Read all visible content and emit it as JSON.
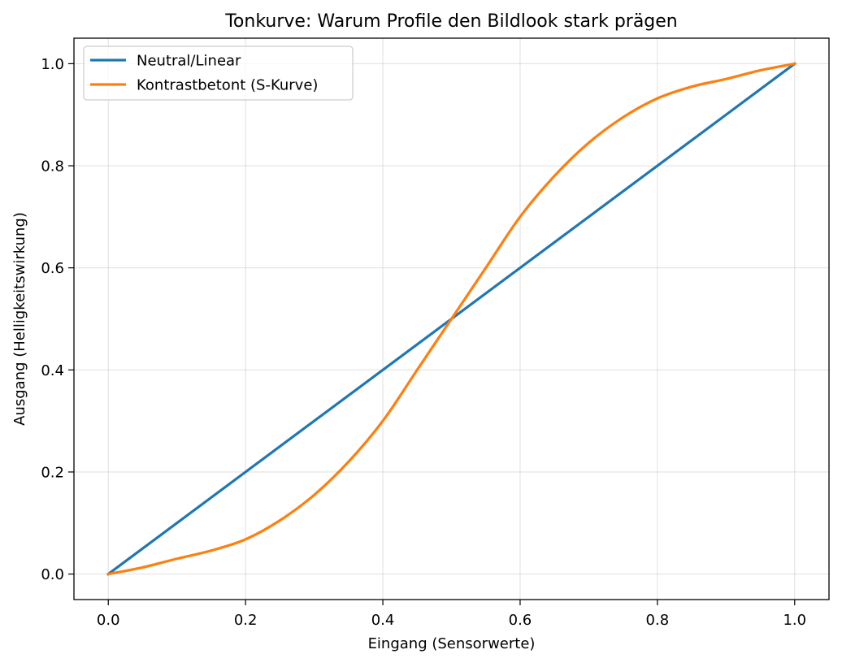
{
  "chart_data": {
    "type": "line",
    "title": "Tonkurve: Warum Profile den Bildlook stark prägen",
    "xlabel": "Eingang (Sensorwerte)",
    "ylabel": "Ausgang (Helligkeitswirkung)",
    "xlim": [
      -0.05,
      1.05
    ],
    "ylim": [
      -0.05,
      1.05
    ],
    "xticks": [
      0.0,
      0.2,
      0.4,
      0.6,
      0.8,
      1.0
    ],
    "xtick_labels": [
      "0.0",
      "0.2",
      "0.4",
      "0.6",
      "0.8",
      "1.0"
    ],
    "yticks": [
      0.0,
      0.2,
      0.4,
      0.6,
      0.8,
      1.0
    ],
    "ytick_labels": [
      "0.0",
      "0.2",
      "0.4",
      "0.6",
      "0.8",
      "1.0"
    ],
    "grid": true,
    "legend_position": "top-left",
    "series": [
      {
        "name": "Neutral/Linear",
        "color": "#1f77b4",
        "x": [
          0.0,
          1.0
        ],
        "y": [
          0.0,
          1.0
        ]
      },
      {
        "name": "Kontrastbetont (S-Kurve)",
        "color": "#ff7f0e",
        "x": [
          0.0,
          0.05,
          0.1,
          0.15,
          0.2,
          0.25,
          0.3,
          0.35,
          0.4,
          0.45,
          0.5,
          0.55,
          0.6,
          0.65,
          0.7,
          0.75,
          0.8,
          0.85,
          0.9,
          0.95,
          1.0
        ],
        "y": [
          0.0,
          0.013,
          0.03,
          0.046,
          0.068,
          0.105,
          0.155,
          0.22,
          0.3,
          0.4,
          0.5,
          0.6,
          0.7,
          0.78,
          0.845,
          0.895,
          0.932,
          0.955,
          0.97,
          0.987,
          1.0
        ]
      }
    ]
  }
}
